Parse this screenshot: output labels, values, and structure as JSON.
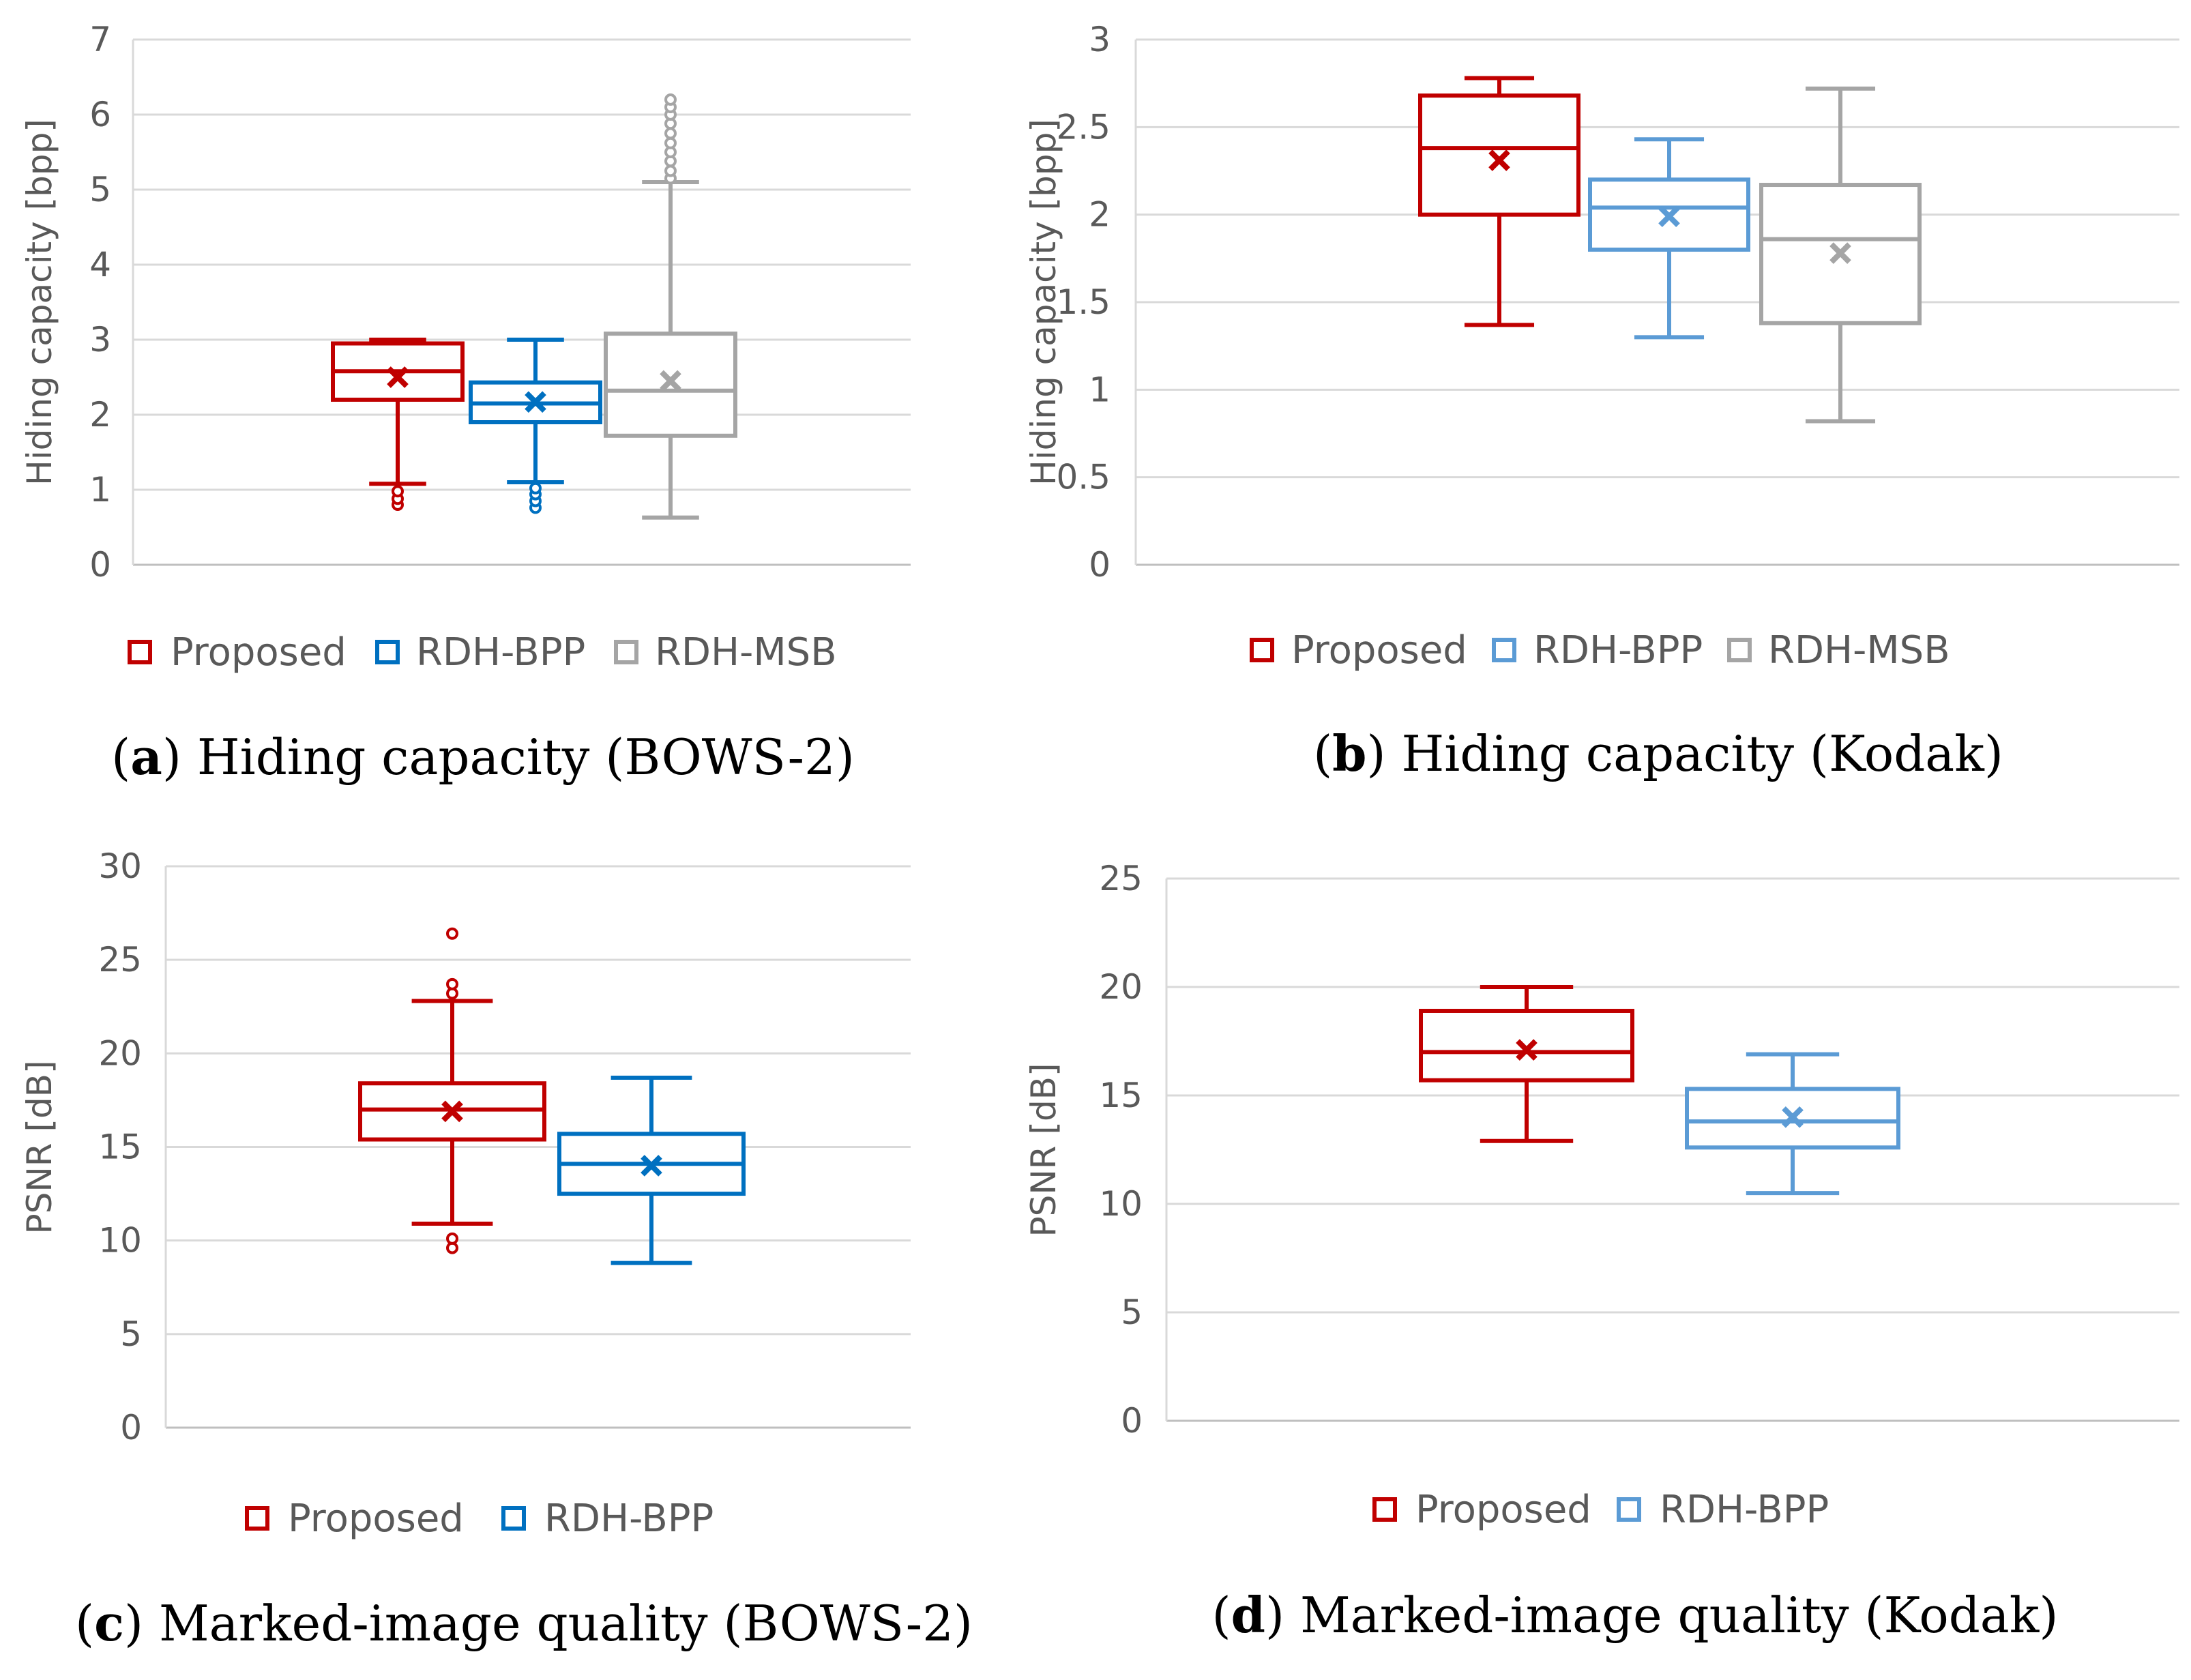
{
  "chart_data": [
    {
      "type": "boxplot",
      "caption": {
        "letter": "a",
        "text": "Hiding capacity (BOWS-2)"
      },
      "ylabel": "Hiding capacity [bpp]",
      "ylim": [
        0,
        7
      ],
      "ytick_step": 1,
      "ytick_labels": [
        "0",
        "1",
        "2",
        "3",
        "4",
        "5",
        "6",
        "7"
      ],
      "legend": "bottom",
      "series": [
        {
          "name": "Proposed",
          "color": "#C00000",
          "min": 1.08,
          "q1": 2.2,
          "median": 2.58,
          "q3": 2.95,
          "max": 3.0,
          "mean": 2.5,
          "outliers": [
            0.8,
            0.88,
            0.98
          ]
        },
        {
          "name": "RDH-BPP",
          "color": "#0070C0",
          "min": 1.1,
          "q1": 1.9,
          "median": 2.15,
          "q3": 2.43,
          "max": 3.0,
          "mean": 2.17,
          "outliers": [
            0.76,
            0.85,
            0.94,
            1.02
          ]
        },
        {
          "name": "RDH-MSB",
          "color": "#A5A5A5",
          "min": 0.63,
          "q1": 1.72,
          "median": 2.32,
          "q3": 3.08,
          "max": 5.1,
          "mean": 2.45,
          "outliers": [
            5.15,
            5.25,
            5.38,
            5.5,
            5.62,
            5.75,
            5.88,
            6.0,
            6.1,
            6.2
          ]
        }
      ]
    },
    {
      "type": "boxplot",
      "caption": {
        "letter": "b",
        "text": "Hiding capacity (Kodak)"
      },
      "ylabel": "Hiding capacity [bpp]",
      "ylim": [
        0,
        3
      ],
      "ytick_step": 0.5,
      "ytick_labels": [
        "0",
        "0.5",
        "1",
        "1.5",
        "2",
        "2.5",
        "3"
      ],
      "legend": "bottom",
      "series": [
        {
          "name": "Proposed",
          "color": "#C00000",
          "min": 1.37,
          "q1": 2.0,
          "median": 2.38,
          "q3": 2.68,
          "max": 2.78,
          "mean": 2.31,
          "outliers": []
        },
        {
          "name": "RDH-BPP",
          "color": "#5B9BD5",
          "min": 1.3,
          "q1": 1.8,
          "median": 2.04,
          "q3": 2.2,
          "max": 2.43,
          "mean": 1.99,
          "outliers": []
        },
        {
          "name": "RDH-MSB",
          "color": "#A5A5A5",
          "min": 0.82,
          "q1": 1.38,
          "median": 1.86,
          "q3": 2.17,
          "max": 2.72,
          "mean": 1.78,
          "outliers": []
        }
      ]
    },
    {
      "type": "boxplot",
      "caption": {
        "letter": "c",
        "text": "Marked-image quality (BOWS-2)"
      },
      "ylabel": "PSNR [dB]",
      "ylim": [
        0,
        30
      ],
      "ytick_step": 5,
      "ytick_labels": [
        "0",
        "5",
        "10",
        "15",
        "20",
        "25",
        "30"
      ],
      "legend": "bottom",
      "series": [
        {
          "name": "Proposed",
          "color": "#C00000",
          "min": 10.9,
          "q1": 15.4,
          "median": 17.0,
          "q3": 18.4,
          "max": 22.8,
          "mean": 16.9,
          "outliers": [
            9.6,
            10.1,
            23.2,
            23.7,
            26.4
          ]
        },
        {
          "name": "RDH-BPP",
          "color": "#0070C0",
          "min": 8.8,
          "q1": 12.5,
          "median": 14.1,
          "q3": 15.7,
          "max": 18.7,
          "mean": 14.0,
          "outliers": []
        }
      ]
    },
    {
      "type": "boxplot",
      "caption": {
        "letter": "d",
        "text": "Marked-image quality (Kodak)"
      },
      "ylabel": "PSNR [dB]",
      "ylim": [
        0,
        25
      ],
      "ytick_step": 5,
      "ytick_labels": [
        "0",
        "5",
        "10",
        "15",
        "20",
        "25"
      ],
      "legend": "bottom",
      "series": [
        {
          "name": "Proposed",
          "color": "#C00000",
          "min": 12.9,
          "q1": 15.7,
          "median": 17.0,
          "q3": 18.9,
          "max": 20.0,
          "mean": 17.1,
          "outliers": []
        },
        {
          "name": "RDH-BPP",
          "color": "#5B9BD5",
          "min": 10.5,
          "q1": 12.6,
          "median": 13.8,
          "q3": 15.3,
          "max": 16.9,
          "mean": 14.0,
          "outliers": []
        }
      ]
    }
  ]
}
